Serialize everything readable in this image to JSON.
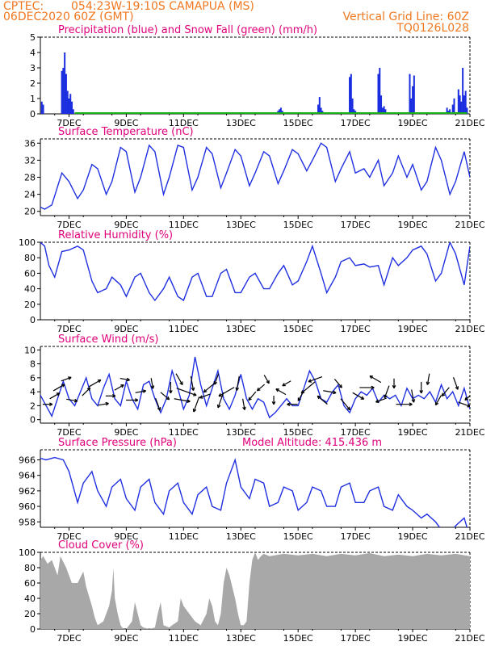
{
  "header": {
    "source": "CPTEC:",
    "location": "054:23W-19:10S   CAMAPUA (MS)",
    "run": "06DEC2020 60Z (GMT)",
    "grid_note": "Vertical Grid Line: 60Z",
    "model_code": "TQ0126L028"
  },
  "colors": {
    "header_text": "#f07820",
    "panel_title": "#e0007a",
    "series_line": "#2030e0",
    "precip_bar": "#1a2ee0",
    "snow_bar": "#18b018",
    "cloud_fill": "#a8a8a8",
    "wind_arrow": "#000000",
    "axis": "#000000"
  },
  "x_tick_labels": [
    "7DEC",
    "9DEC",
    "11DEC",
    "13DEC",
    "15DEC",
    "17DEC",
    "19DEC",
    "21DEC"
  ],
  "chart_data": [
    {
      "type": "bar",
      "title": "Precipitation (blue) and Snow Fall (green) (mm/h)",
      "ylim": [
        0,
        5
      ],
      "yticks": [
        0,
        1,
        2,
        3,
        4,
        5
      ],
      "series": [
        {
          "name": "Precipitation",
          "x": [
            6.05,
            6.1,
            6.75,
            6.8,
            6.85,
            6.9,
            6.95,
            7.0,
            7.05,
            7.1,
            7.15,
            14.3,
            14.35,
            14.4,
            14.45,
            15.7,
            15.75,
            15.8,
            15.85,
            16.8,
            16.85,
            16.9,
            16.95,
            17.0,
            17.8,
            17.85,
            17.9,
            17.95,
            18.0,
            18.05,
            18.9,
            18.95,
            19.0,
            19.05,
            20.2,
            20.25,
            20.3,
            20.4,
            20.45,
            20.6,
            20.65,
            20.7,
            20.75,
            20.8,
            20.85,
            20.9
          ],
          "values": [
            0.8,
            0.6,
            2.8,
            3.0,
            4.0,
            2.6,
            1.5,
            1.0,
            1.3,
            0.8,
            0.3,
            0.2,
            0.3,
            0.4,
            0.2,
            0.6,
            1.1,
            0.4,
            0.2,
            2.4,
            2.6,
            1.0,
            0.3,
            0.2,
            2.6,
            3.0,
            1.2,
            0.4,
            0.5,
            0.3,
            2.6,
            1.0,
            1.8,
            2.5,
            0.4,
            0.2,
            0.3,
            0.6,
            1.0,
            1.6,
            1.2,
            0.8,
            3.0,
            1.2,
            1.5,
            0.4
          ]
        },
        {
          "name": "Snow Fall",
          "x": [],
          "values": []
        }
      ]
    },
    {
      "type": "line",
      "title": "Surface Temperature (nC)",
      "ylim": [
        19,
        37
      ],
      "yticks": [
        20,
        24,
        28,
        32,
        36
      ],
      "x": [
        6.0,
        6.15,
        6.4,
        6.75,
        7.0,
        7.3,
        7.5,
        7.8,
        8.0,
        8.3,
        8.5,
        8.8,
        9.0,
        9.3,
        9.5,
        9.8,
        10.0,
        10.3,
        10.5,
        10.8,
        11.0,
        11.3,
        11.5,
        11.8,
        12.0,
        12.3,
        12.5,
        12.8,
        13.0,
        13.3,
        13.5,
        13.8,
        14.0,
        14.3,
        14.5,
        14.8,
        15.0,
        15.3,
        15.5,
        15.8,
        16.0,
        16.3,
        16.5,
        16.8,
        17.0,
        17.3,
        17.5,
        17.8,
        18.0,
        18.3,
        18.5,
        18.8,
        19.0,
        19.3,
        19.5,
        19.8,
        20.0,
        20.3,
        20.5,
        20.8,
        21.0
      ],
      "values": [
        21.0,
        20.5,
        21.5,
        29.0,
        27.0,
        23.0,
        25.0,
        31.0,
        30.0,
        24.0,
        27.0,
        35.0,
        34.0,
        24.5,
        28.0,
        35.5,
        34.0,
        24.0,
        28.0,
        35.5,
        35.0,
        25.0,
        28.0,
        35.0,
        33.5,
        25.5,
        29.0,
        34.5,
        33.0,
        26.0,
        29.0,
        34.0,
        33.0,
        26.5,
        29.5,
        34.5,
        33.5,
        29.5,
        32.0,
        36.0,
        35.0,
        27.0,
        30.0,
        34.0,
        29.0,
        30.0,
        28.0,
        32.0,
        26.0,
        29.0,
        33.0,
        28.0,
        31.0,
        25.0,
        27.0,
        35.0,
        32.0,
        24.0,
        27.0,
        34.0,
        28.0
      ]
    },
    {
      "type": "line",
      "title": "Relative Humidity (%)",
      "ylim": [
        0,
        100
      ],
      "yticks": [
        0,
        20,
        40,
        60,
        80,
        100
      ],
      "x": [
        6.0,
        6.15,
        6.3,
        6.5,
        6.75,
        7.0,
        7.3,
        7.5,
        7.8,
        8.0,
        8.3,
        8.5,
        8.8,
        9.0,
        9.3,
        9.5,
        9.8,
        10.0,
        10.3,
        10.5,
        10.8,
        11.0,
        11.3,
        11.5,
        11.8,
        12.0,
        12.3,
        12.5,
        12.8,
        13.0,
        13.3,
        13.5,
        13.8,
        14.0,
        14.3,
        14.5,
        14.8,
        15.0,
        15.3,
        15.5,
        15.8,
        16.0,
        16.3,
        16.5,
        16.8,
        17.0,
        17.3,
        17.5,
        17.8,
        18.0,
        18.3,
        18.5,
        18.8,
        19.0,
        19.3,
        19.5,
        19.8,
        20.0,
        20.3,
        20.5,
        20.8,
        21.0
      ],
      "values": [
        100.0,
        95.0,
        70.0,
        55.0,
        88.0,
        90.0,
        95.0,
        90.0,
        50.0,
        35.0,
        40.0,
        55.0,
        45.0,
        30.0,
        55.0,
        60.0,
        35.0,
        25.0,
        40.0,
        55.0,
        30.0,
        25.0,
        55.0,
        60.0,
        30.0,
        30.0,
        60.0,
        65.0,
        35.0,
        35.0,
        55.0,
        60.0,
        40.0,
        40.0,
        60.0,
        70.0,
        45.0,
        50.0,
        75.0,
        95.0,
        60.0,
        35.0,
        55.0,
        75.0,
        80.0,
        70.0,
        72.0,
        68.0,
        70.0,
        45.0,
        80.0,
        70.0,
        80.0,
        90.0,
        95.0,
        85.0,
        50.0,
        60.0,
        100.0,
        85.0,
        45.0,
        95.0
      ]
    },
    {
      "type": "line",
      "title": "Surface Wind (m/s)",
      "ylim": [
        -0.5,
        10.5
      ],
      "yticks": [
        0,
        2,
        4,
        6,
        8,
        10
      ],
      "x": [
        6.0,
        6.2,
        6.4,
        6.6,
        6.8,
        7.0,
        7.2,
        7.4,
        7.6,
        7.8,
        8.0,
        8.2,
        8.4,
        8.6,
        8.8,
        9.0,
        9.2,
        9.4,
        9.6,
        9.8,
        10.0,
        10.2,
        10.4,
        10.6,
        10.8,
        11.0,
        11.2,
        11.4,
        11.6,
        11.8,
        12.0,
        12.2,
        12.4,
        12.6,
        12.8,
        13.0,
        13.2,
        13.4,
        13.6,
        13.8,
        14.0,
        14.2,
        14.4,
        14.6,
        14.8,
        15.0,
        15.2,
        15.4,
        15.6,
        15.8,
        16.0,
        16.2,
        16.4,
        16.6,
        16.8,
        17.0,
        17.2,
        17.4,
        17.6,
        17.8,
        18.0,
        18.2,
        18.4,
        18.6,
        18.8,
        19.0,
        19.2,
        19.4,
        19.6,
        19.8,
        20.0,
        20.2,
        20.4,
        20.6,
        20.8,
        21.0
      ],
      "values": [
        3.5,
        2.0,
        0.5,
        3.0,
        5.5,
        3.0,
        2.0,
        4.0,
        6.0,
        3.0,
        2.0,
        4.5,
        6.5,
        3.0,
        2.0,
        5.5,
        3.0,
        1.5,
        5.0,
        5.5,
        3.0,
        1.0,
        3.0,
        7.0,
        4.5,
        1.5,
        3.5,
        9.0,
        5.0,
        2.0,
        4.5,
        7.0,
        3.0,
        1.5,
        3.5,
        6.5,
        3.0,
        1.5,
        3.0,
        2.5,
        0.3,
        1.0,
        2.0,
        3.0,
        2.0,
        2.0,
        4.5,
        7.0,
        5.5,
        3.0,
        2.5,
        4.0,
        5.0,
        2.0,
        1.0,
        3.0,
        4.0,
        3.5,
        4.5,
        2.5,
        3.5,
        3.0,
        3.5,
        2.0,
        4.5,
        3.0,
        3.5,
        3.0,
        4.0,
        2.5,
        5.0,
        3.0,
        4.0,
        2.0,
        4.5,
        1.5
      ]
    },
    {
      "type": "line",
      "title": "Surface Pressure (hPa)",
      "annotation": "Model Altitude: 415.436 m",
      "ylim": [
        957.3,
        967.3
      ],
      "yticks": [
        958,
        960,
        962,
        964,
        966
      ],
      "x": [
        6.0,
        6.2,
        6.5,
        6.8,
        7.0,
        7.3,
        7.5,
        7.8,
        8.0,
        8.3,
        8.5,
        8.8,
        9.0,
        9.3,
        9.5,
        9.8,
        10.0,
        10.3,
        10.5,
        10.8,
        11.0,
        11.3,
        11.5,
        11.8,
        12.0,
        12.3,
        12.5,
        12.8,
        13.0,
        13.3,
        13.5,
        13.8,
        14.0,
        14.3,
        14.5,
        14.8,
        15.0,
        15.3,
        15.5,
        15.8,
        16.0,
        16.3,
        16.5,
        16.8,
        17.0,
        17.3,
        17.5,
        17.8,
        18.0,
        18.3,
        18.5,
        18.8,
        19.0,
        19.3,
        19.5,
        19.8,
        20.0,
        20.3,
        20.5,
        20.8,
        21.0
      ],
      "values": [
        966.2,
        966.0,
        966.3,
        966.0,
        964.5,
        960.5,
        963.0,
        964.5,
        962.0,
        960.0,
        962.5,
        963.5,
        961.0,
        959.5,
        962.5,
        963.5,
        960.5,
        959.0,
        962.0,
        963.0,
        960.5,
        959.0,
        961.5,
        962.5,
        960.0,
        959.5,
        963.0,
        966.0,
        962.5,
        961.0,
        963.5,
        963.0,
        960.0,
        960.5,
        962.5,
        962.0,
        959.5,
        960.5,
        962.5,
        962.0,
        960.0,
        960.0,
        962.5,
        963.0,
        960.5,
        960.5,
        962.0,
        962.5,
        960.0,
        959.5,
        961.5,
        960.0,
        959.5,
        958.5,
        959.0,
        958.0,
        957.0,
        956.5,
        957.5,
        958.5,
        956.0
      ]
    },
    {
      "type": "area",
      "title": "Cloud Cover (%)",
      "ylim": [
        0,
        100
      ],
      "yticks": [
        0,
        20,
        40,
        60,
        80,
        100
      ],
      "x": [
        6.0,
        6.1,
        6.25,
        6.4,
        6.6,
        6.7,
        6.9,
        7.1,
        7.3,
        7.5,
        7.6,
        7.8,
        7.9,
        8.0,
        8.2,
        8.4,
        8.5,
        8.55,
        8.6,
        8.7,
        8.8,
        8.9,
        9.0,
        9.1,
        9.2,
        9.3,
        9.4,
        9.5,
        9.6,
        9.8,
        10.0,
        10.1,
        10.2,
        10.3,
        10.5,
        10.6,
        10.8,
        10.9,
        11.0,
        11.1,
        11.2,
        11.4,
        11.6,
        11.8,
        11.9,
        12.0,
        12.1,
        12.2,
        12.3,
        12.4,
        12.5,
        12.6,
        12.8,
        12.9,
        13.0,
        13.1,
        13.2,
        13.3,
        13.4,
        13.5,
        13.6,
        13.7,
        13.8,
        14.0,
        14.5,
        15.0,
        15.5,
        16.0,
        16.5,
        17.0,
        17.5,
        18.0,
        18.5,
        19.0,
        19.5,
        20.0,
        20.5,
        21.0
      ],
      "values": [
        90.0,
        95.0,
        85.0,
        90.0,
        70.0,
        95.0,
        80.0,
        60.0,
        60.0,
        75.0,
        55.0,
        30.0,
        15.0,
        5.0,
        10.0,
        30.0,
        50.0,
        80.0,
        40.0,
        20.0,
        5.0,
        0.0,
        0.0,
        5.0,
        10.0,
        35.0,
        20.0,
        5.0,
        2.0,
        0.0,
        2.0,
        20.0,
        35.0,
        5.0,
        2.0,
        5.0,
        10.0,
        40.0,
        30.0,
        25.0,
        20.0,
        10.0,
        5.0,
        20.0,
        40.0,
        30.0,
        10.0,
        5.0,
        20.0,
        60.0,
        80.0,
        70.0,
        40.0,
        20.0,
        5.0,
        5.0,
        10.0,
        60.0,
        90.0,
        100.0,
        90.0,
        95.0,
        98.0,
        95.0,
        98.0,
        96.0,
        98.0,
        95.0,
        98.0,
        96.0,
        99.0,
        95.0,
        97.0,
        95.0,
        98.0,
        96.0,
        98.0,
        95.0
      ]
    }
  ],
  "wind_arrows": {
    "x": [
      6.25,
      6.5,
      6.65,
      6.9,
      7.1,
      7.6,
      7.9,
      8.2,
      8.45,
      8.75,
      8.95,
      9.2,
      9.5,
      9.9,
      10.1,
      10.35,
      10.55,
      10.85,
      10.95,
      11.1,
      11.3,
      11.45,
      11.75,
      11.9,
      12.15,
      12.3,
      12.5,
      12.9,
      13.1,
      13.4,
      13.7,
      13.9,
      14.15,
      14.4,
      14.6,
      14.8,
      15.1,
      15.35,
      15.6,
      15.85,
      16.1,
      16.4,
      16.65,
      17.1,
      17.4,
      17.7,
      17.9,
      18.1,
      18.35,
      18.7,
      19.0,
      19.3,
      19.55,
      19.9,
      20.15,
      20.5,
      20.8,
      21.0
    ],
    "speed": [
      1.5,
      2.0,
      2.5,
      1.8,
      2.0,
      2.0,
      2.8,
      1.8,
      1.5,
      1.8,
      1.5,
      2.2,
      1.8,
      1.8,
      2.5,
      2.0,
      2.0,
      2.5,
      3.5,
      5.0,
      3.0,
      3.5,
      2.0,
      3.0,
      2.0,
      3.5,
      4.0,
      3.0,
      2.0,
      2.0,
      1.5,
      1.5,
      1.2,
      2.0,
      1.5,
      1.8,
      2.0,
      4.0,
      3.0,
      2.5,
      2.5,
      2.0,
      3.0,
      2.5,
      3.0,
      2.5,
      2.0,
      2.5,
      1.5,
      3.5,
      2.5,
      2.0,
      2.0,
      2.0,
      2.0,
      2.5,
      2.5,
      2.5
    ],
    "direction": [
      90.0,
      60.0,
      60.0,
      70.0,
      100.0,
      45.0,
      60.0,
      80.0,
      90.0,
      60.0,
      100.0,
      90.0,
      80.0,
      170.0,
      160.0,
      130.0,
      180.0,
      150.0,
      100.0,
      110.0,
      170.0,
      200.0,
      250.0,
      230.0,
      200.0,
      200.0,
      240.0,
      190.0,
      170.0,
      220.0,
      230.0,
      150.0,
      180.0,
      300.0,
      240.0,
      270.0,
      210.0,
      230.0,
      250.0,
      310.0,
      100.0,
      140.0,
      140.0,
      120.0,
      90.0,
      300.0,
      250.0,
      200.0,
      180.0,
      90.0,
      170.0,
      180.0,
      190.0,
      210.0,
      220.0,
      160.0,
      110.0,
      230.0
    ]
  }
}
